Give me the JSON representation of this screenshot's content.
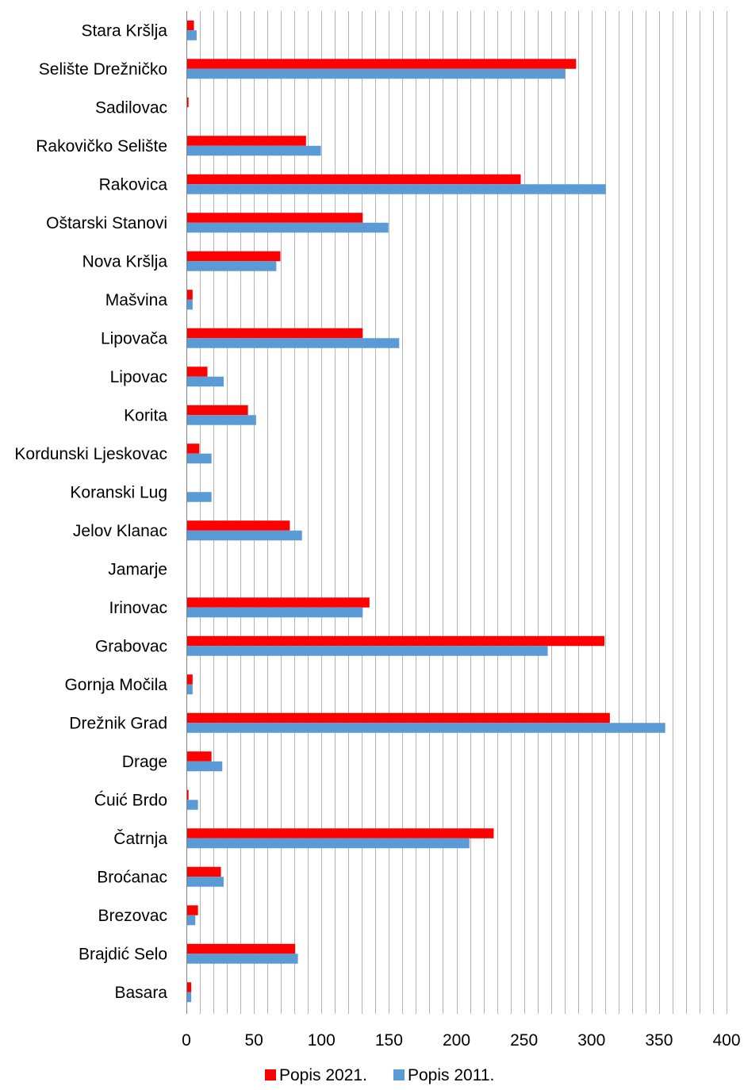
{
  "chart_data": {
    "type": "bar",
    "orientation": "horizontal",
    "categories": [
      "Stara Kršlja",
      "Selište Drežničko",
      "Sadilovac",
      "Rakovičko Selište",
      "Rakovica",
      "Oštarski Stanovi",
      "Nova Kršlja",
      "Mašvina",
      "Lipovača",
      "Lipovac",
      "Korita",
      "Kordunski Ljeskovac",
      "Koranski Lug",
      "Jelov Klanac",
      "Jamarje",
      "Irinovac",
      "Grabovac",
      "Gornja Močila",
      "Drežnik Grad",
      "Drage",
      "Ćuić Brdo",
      "Čatrnja",
      "Broćanac",
      "Brezovac",
      "Brajdić Selo",
      "Basara"
    ],
    "series": [
      {
        "name": "Popis 2021.",
        "color": "#ff0000",
        "values": [
          5,
          288,
          1,
          88,
          247,
          130,
          69,
          4,
          130,
          15,
          45,
          9,
          0,
          76,
          0,
          135,
          309,
          4,
          313,
          18,
          1,
          227,
          25,
          8,
          80,
          3
        ]
      },
      {
        "name": "Popis 2011.",
        "color": "#5b9bd5",
        "values": [
          7,
          280,
          0,
          99,
          310,
          149,
          66,
          4,
          157,
          27,
          51,
          18,
          18,
          85,
          0,
          130,
          267,
          4,
          354,
          26,
          8,
          209,
          27,
          6,
          82,
          3
        ]
      }
    ],
    "xlim": [
      0,
      400
    ],
    "x_ticks": [
      "0",
      "50",
      "100",
      "150",
      "200",
      "250",
      "300",
      "350",
      "400"
    ],
    "x_minor_step": 10,
    "grid": true,
    "legend_position": "bottom"
  }
}
